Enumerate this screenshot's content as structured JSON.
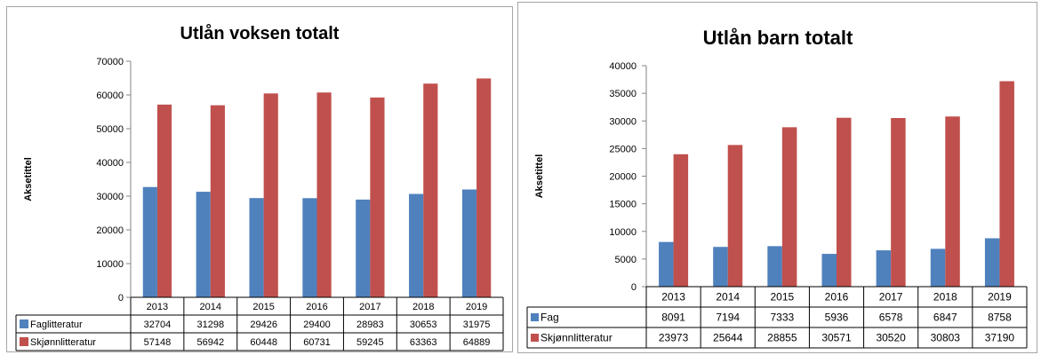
{
  "colors": {
    "series1": "#4f81bd",
    "series2": "#c0504d",
    "axis": "#868686",
    "table_border": "#000000"
  },
  "chart_data": [
    {
      "type": "bar",
      "title": "Utlån voksen totalt",
      "ylabel": "Aksetittel",
      "xlabel": "",
      "categories": [
        "2013",
        "2014",
        "2015",
        "2016",
        "2017",
        "2018",
        "2019"
      ],
      "ylim": [
        0,
        70000
      ],
      "yticks": [
        0,
        10000,
        20000,
        30000,
        40000,
        50000,
        60000,
        70000
      ],
      "grid": false,
      "legend": "data-table",
      "series": [
        {
          "name": "Faglitteratur",
          "values": [
            32704,
            31298,
            29426,
            29400,
            28983,
            30653,
            31975
          ]
        },
        {
          "name": "Skjønnlitteratur",
          "values": [
            57148,
            56942,
            60448,
            60731,
            59245,
            63363,
            64889
          ]
        }
      ]
    },
    {
      "type": "bar",
      "title": "Utlån barn totalt",
      "ylabel": "Aksetittel",
      "xlabel": "",
      "categories": [
        "2013",
        "2014",
        "2015",
        "2016",
        "2017",
        "2018",
        "2019"
      ],
      "ylim": [
        0,
        40000
      ],
      "yticks": [
        0,
        5000,
        10000,
        15000,
        20000,
        25000,
        30000,
        35000,
        40000
      ],
      "grid": false,
      "legend": "data-table",
      "series": [
        {
          "name": "Fag",
          "values": [
            8091,
            7194,
            7333,
            5936,
            6578,
            6847,
            8758
          ]
        },
        {
          "name": "Skjønnlitteratur",
          "values": [
            23973,
            25644,
            28855,
            30571,
            30520,
            30803,
            37190
          ]
        }
      ]
    }
  ]
}
